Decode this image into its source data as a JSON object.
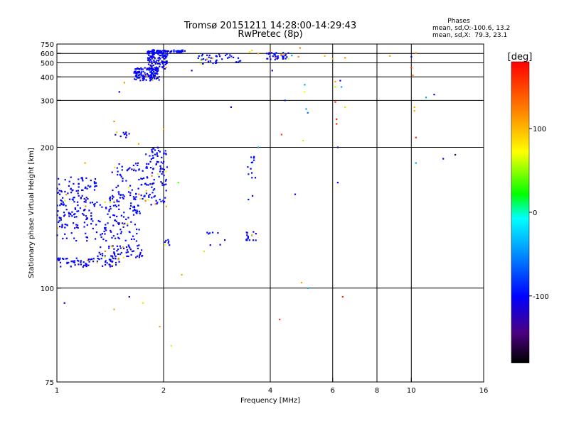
{
  "header": {
    "title_line1": "Tromsø 20151211 14:28:00-14:29:43",
    "title_line2": "RwPretec (8p)"
  },
  "stats": {
    "heading": "Phases",
    "line1": "mean, sd,O:-100.6, 13.2",
    "line2": "mean, sd,X:  79.3, 23.1"
  },
  "colorbar": {
    "label": "[deg]",
    "ticks": [
      {
        "v": 100,
        "label": "100"
      },
      {
        "v": 0,
        "label": "0"
      },
      {
        "v": -100,
        "label": "-100"
      }
    ],
    "range": [
      -180,
      180
    ]
  },
  "chart_data": {
    "type": "scatter",
    "xlabel": "Frequency [MHz]",
    "ylabel": "Stationary phase Virtual Height [km]",
    "xscale": "log",
    "yscale": "reciprocal",
    "xlim": [
      1,
      16
    ],
    "ylim": [
      75,
      750
    ],
    "xticks": [
      {
        "v": 1,
        "label": "1"
      },
      {
        "v": 2,
        "label": "2"
      },
      {
        "v": 4,
        "label": "4"
      },
      {
        "v": 6,
        "label": "6"
      },
      {
        "v": 8,
        "label": "8"
      },
      {
        "v": 10,
        "label": "10"
      },
      {
        "v": 16,
        "label": "16"
      }
    ],
    "yticks": [
      {
        "v": 75,
        "label": "75"
      },
      {
        "v": 100,
        "label": "100"
      },
      {
        "v": 200,
        "label": "200"
      },
      {
        "v": 300,
        "label": "300"
      },
      {
        "v": 400,
        "label": "400"
      },
      {
        "v": 500,
        "label": "500"
      },
      {
        "v": 600,
        "label": "600"
      },
      {
        "v": 750,
        "label": "750"
      }
    ],
    "grid": true,
    "gridlines_x": [
      2,
      4,
      6,
      8,
      10
    ],
    "gridlines_y": [
      100,
      200,
      300,
      400,
      500,
      600
    ],
    "o_mode_regions": [
      {
        "f": [
          1.0,
          1.72
        ],
        "h": [
          120,
          150
        ],
        "n": 230
      },
      {
        "f": [
          1.0,
          1.5
        ],
        "h": [
          108,
          112
        ],
        "n": 80
      },
      {
        "f": [
          1.3,
          1.75
        ],
        "h": [
          112,
          118
        ],
        "n": 60
      },
      {
        "f": [
          1.0,
          1.3
        ],
        "h": [
          150,
          165
        ],
        "n": 50
      },
      {
        "f": [
          1.4,
          1.8
        ],
        "h": [
          140,
          180
        ],
        "n": 70
      },
      {
        "f": [
          1.75,
          2.05
        ],
        "h": [
          140,
          200
        ],
        "n": 100
      },
      {
        "f": [
          1.65,
          1.95
        ],
        "h": [
          380,
          460
        ],
        "n": 140
      },
      {
        "f": [
          1.8,
          2.05
        ],
        "h": [
          450,
          640
        ],
        "n": 140
      },
      {
        "f": [
          1.85,
          2.3
        ],
        "h": [
          600,
          650
        ],
        "n": 40
      },
      {
        "f": [
          2.5,
          3.3
        ],
        "h": [
          490,
          600
        ],
        "n": 40
      },
      {
        "f": [
          3.9,
          4.5
        ],
        "h": [
          530,
          610
        ],
        "n": 40
      },
      {
        "f": [
          1.45,
          1.6
        ],
        "h": [
          215,
          225
        ],
        "n": 10
      },
      {
        "f": [
          3.4,
          3.7
        ],
        "h": [
          120,
          125
        ],
        "n": 16
      },
      {
        "f": [
          3.45,
          3.65
        ],
        "h": [
          145,
          190
        ],
        "n": 14
      },
      {
        "f": [
          2.0,
          2.1
        ],
        "h": [
          118,
          124
        ],
        "n": 8
      },
      {
        "f": [
          2.6,
          3.0
        ],
        "h": [
          118,
          125
        ],
        "n": 8
      }
    ],
    "points": [
      {
        "f": 1.5,
        "h": 330,
        "p": -100
      },
      {
        "f": 1.45,
        "h": 245,
        "p": 120
      },
      {
        "f": 1.55,
        "h": 370,
        "p": 115
      },
      {
        "f": 2.4,
        "h": 440,
        "p": -100
      },
      {
        "f": 2.55,
        "h": 525,
        "p": 40
      },
      {
        "f": 2.65,
        "h": 535,
        "p": 120
      },
      {
        "f": 2.75,
        "h": 545,
        "p": 110
      },
      {
        "f": 3.1,
        "h": 280,
        "p": -110
      },
      {
        "f": 3.5,
        "h": 620,
        "p": 80
      },
      {
        "f": 3.55,
        "h": 640,
        "p": 90
      },
      {
        "f": 3.7,
        "h": 600,
        "p": 110
      },
      {
        "f": 4.0,
        "h": 640,
        "p": 130
      },
      {
        "f": 4.05,
        "h": 440,
        "p": -110
      },
      {
        "f": 4.4,
        "h": 300,
        "p": -90
      },
      {
        "f": 4.5,
        "h": 540,
        "p": 60
      },
      {
        "f": 4.6,
        "h": 575,
        "p": -40
      },
      {
        "f": 4.8,
        "h": 560,
        "p": 120
      },
      {
        "f": 4.85,
        "h": 680,
        "p": 120
      },
      {
        "f": 4.95,
        "h": 210,
        "p": 60
      },
      {
        "f": 4.7,
        "h": 150,
        "p": -110
      },
      {
        "f": 4.3,
        "h": 220,
        "p": 150
      },
      {
        "f": 4.25,
        "h": 90,
        "p": 150
      },
      {
        "f": 4.9,
        "h": 102,
        "p": 110
      },
      {
        "f": 5.0,
        "h": 360,
        "p": -40
      },
      {
        "f": 5.0,
        "h": 330,
        "p": 70
      },
      {
        "f": 5.05,
        "h": 275,
        "p": -40
      },
      {
        "f": 5.1,
        "h": 265,
        "p": -60
      },
      {
        "f": 5.1,
        "h": 100,
        "p": -40
      },
      {
        "f": 5.7,
        "h": 570,
        "p": 100
      },
      {
        "f": 6.0,
        "h": 540,
        "p": 110
      },
      {
        "f": 6.1,
        "h": 375,
        "p": 110
      },
      {
        "f": 6.1,
        "h": 350,
        "p": 60
      },
      {
        "f": 6.1,
        "h": 295,
        "p": 160
      },
      {
        "f": 6.15,
        "h": 250,
        "p": 160
      },
      {
        "f": 6.15,
        "h": 240,
        "p": 165
      },
      {
        "f": 6.2,
        "h": 200,
        "p": -110
      },
      {
        "f": 6.2,
        "h": 160,
        "p": -100
      },
      {
        "f": 6.3,
        "h": 380,
        "p": -110
      },
      {
        "f": 6.35,
        "h": 350,
        "p": -40
      },
      {
        "f": 6.4,
        "h": 97,
        "p": 165
      },
      {
        "f": 6.5,
        "h": 280,
        "p": 60
      },
      {
        "f": 6.5,
        "h": 550,
        "p": 115
      },
      {
        "f": 8.7,
        "h": 570,
        "p": 110
      },
      {
        "f": 10.0,
        "h": 560,
        "p": -110
      },
      {
        "f": 10.0,
        "h": 460,
        "p": 160
      },
      {
        "f": 10.1,
        "h": 410,
        "p": 125
      },
      {
        "f": 10.2,
        "h": 280,
        "p": 100
      },
      {
        "f": 10.2,
        "h": 270,
        "p": 105
      },
      {
        "f": 10.3,
        "h": 215,
        "p": 165
      },
      {
        "f": 10.3,
        "h": 180,
        "p": -40
      },
      {
        "f": 10.3,
        "h": 605,
        "p": 130
      },
      {
        "f": 11.0,
        "h": 310,
        "p": -40
      },
      {
        "f": 11.6,
        "h": 320,
        "p": -110
      },
      {
        "f": 12.3,
        "h": 185,
        "p": -110
      },
      {
        "f": 13.3,
        "h": 190,
        "p": -150
      },
      {
        "f": 1.05,
        "h": 95,
        "p": -110
      },
      {
        "f": 1.2,
        "h": 180,
        "p": 110
      },
      {
        "f": 1.45,
        "h": 93,
        "p": 110
      },
      {
        "f": 1.6,
        "h": 97,
        "p": -110
      },
      {
        "f": 1.75,
        "h": 95,
        "p": 60
      },
      {
        "f": 1.95,
        "h": 88,
        "p": 110
      },
      {
        "f": 2.1,
        "h": 83,
        "p": 60
      },
      {
        "f": 2.25,
        "h": 105,
        "p": 110
      },
      {
        "f": 2.6,
        "h": 115,
        "p": 60
      },
      {
        "f": 2.0,
        "h": 230,
        "p": 110
      },
      {
        "f": 1.7,
        "h": 205,
        "p": 110
      },
      {
        "f": 2.2,
        "h": 160,
        "p": 40
      },
      {
        "f": 3.7,
        "h": 200,
        "p": -40
      }
    ]
  }
}
